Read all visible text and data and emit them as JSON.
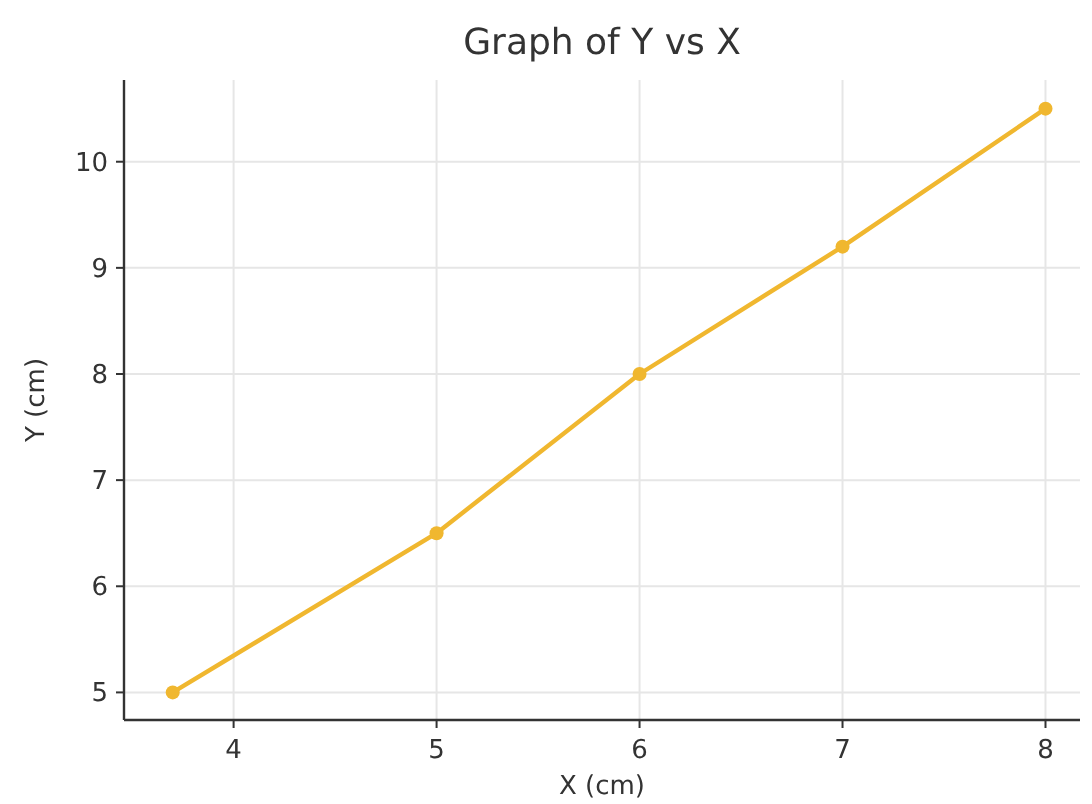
{
  "chart_data": {
    "type": "line",
    "title": "Graph of Y vs X",
    "xlabel": "X (cm)",
    "ylabel": "Y (cm)",
    "x": [
      3.7,
      5,
      6,
      7,
      8
    ],
    "series": [
      {
        "color": "#f0b72f",
        "values": [
          5,
          6.5,
          8,
          9.2,
          10.5
        ]
      }
    ],
    "xlim": [
      3.46,
      8.17
    ],
    "xticks": [
      4,
      5,
      6,
      7,
      8
    ],
    "ylim": [
      4.74,
      10.77
    ],
    "yticks": [
      5,
      6,
      7,
      8,
      9,
      10
    ],
    "grid": true,
    "marker": "circle",
    "line_style": "solid"
  }
}
